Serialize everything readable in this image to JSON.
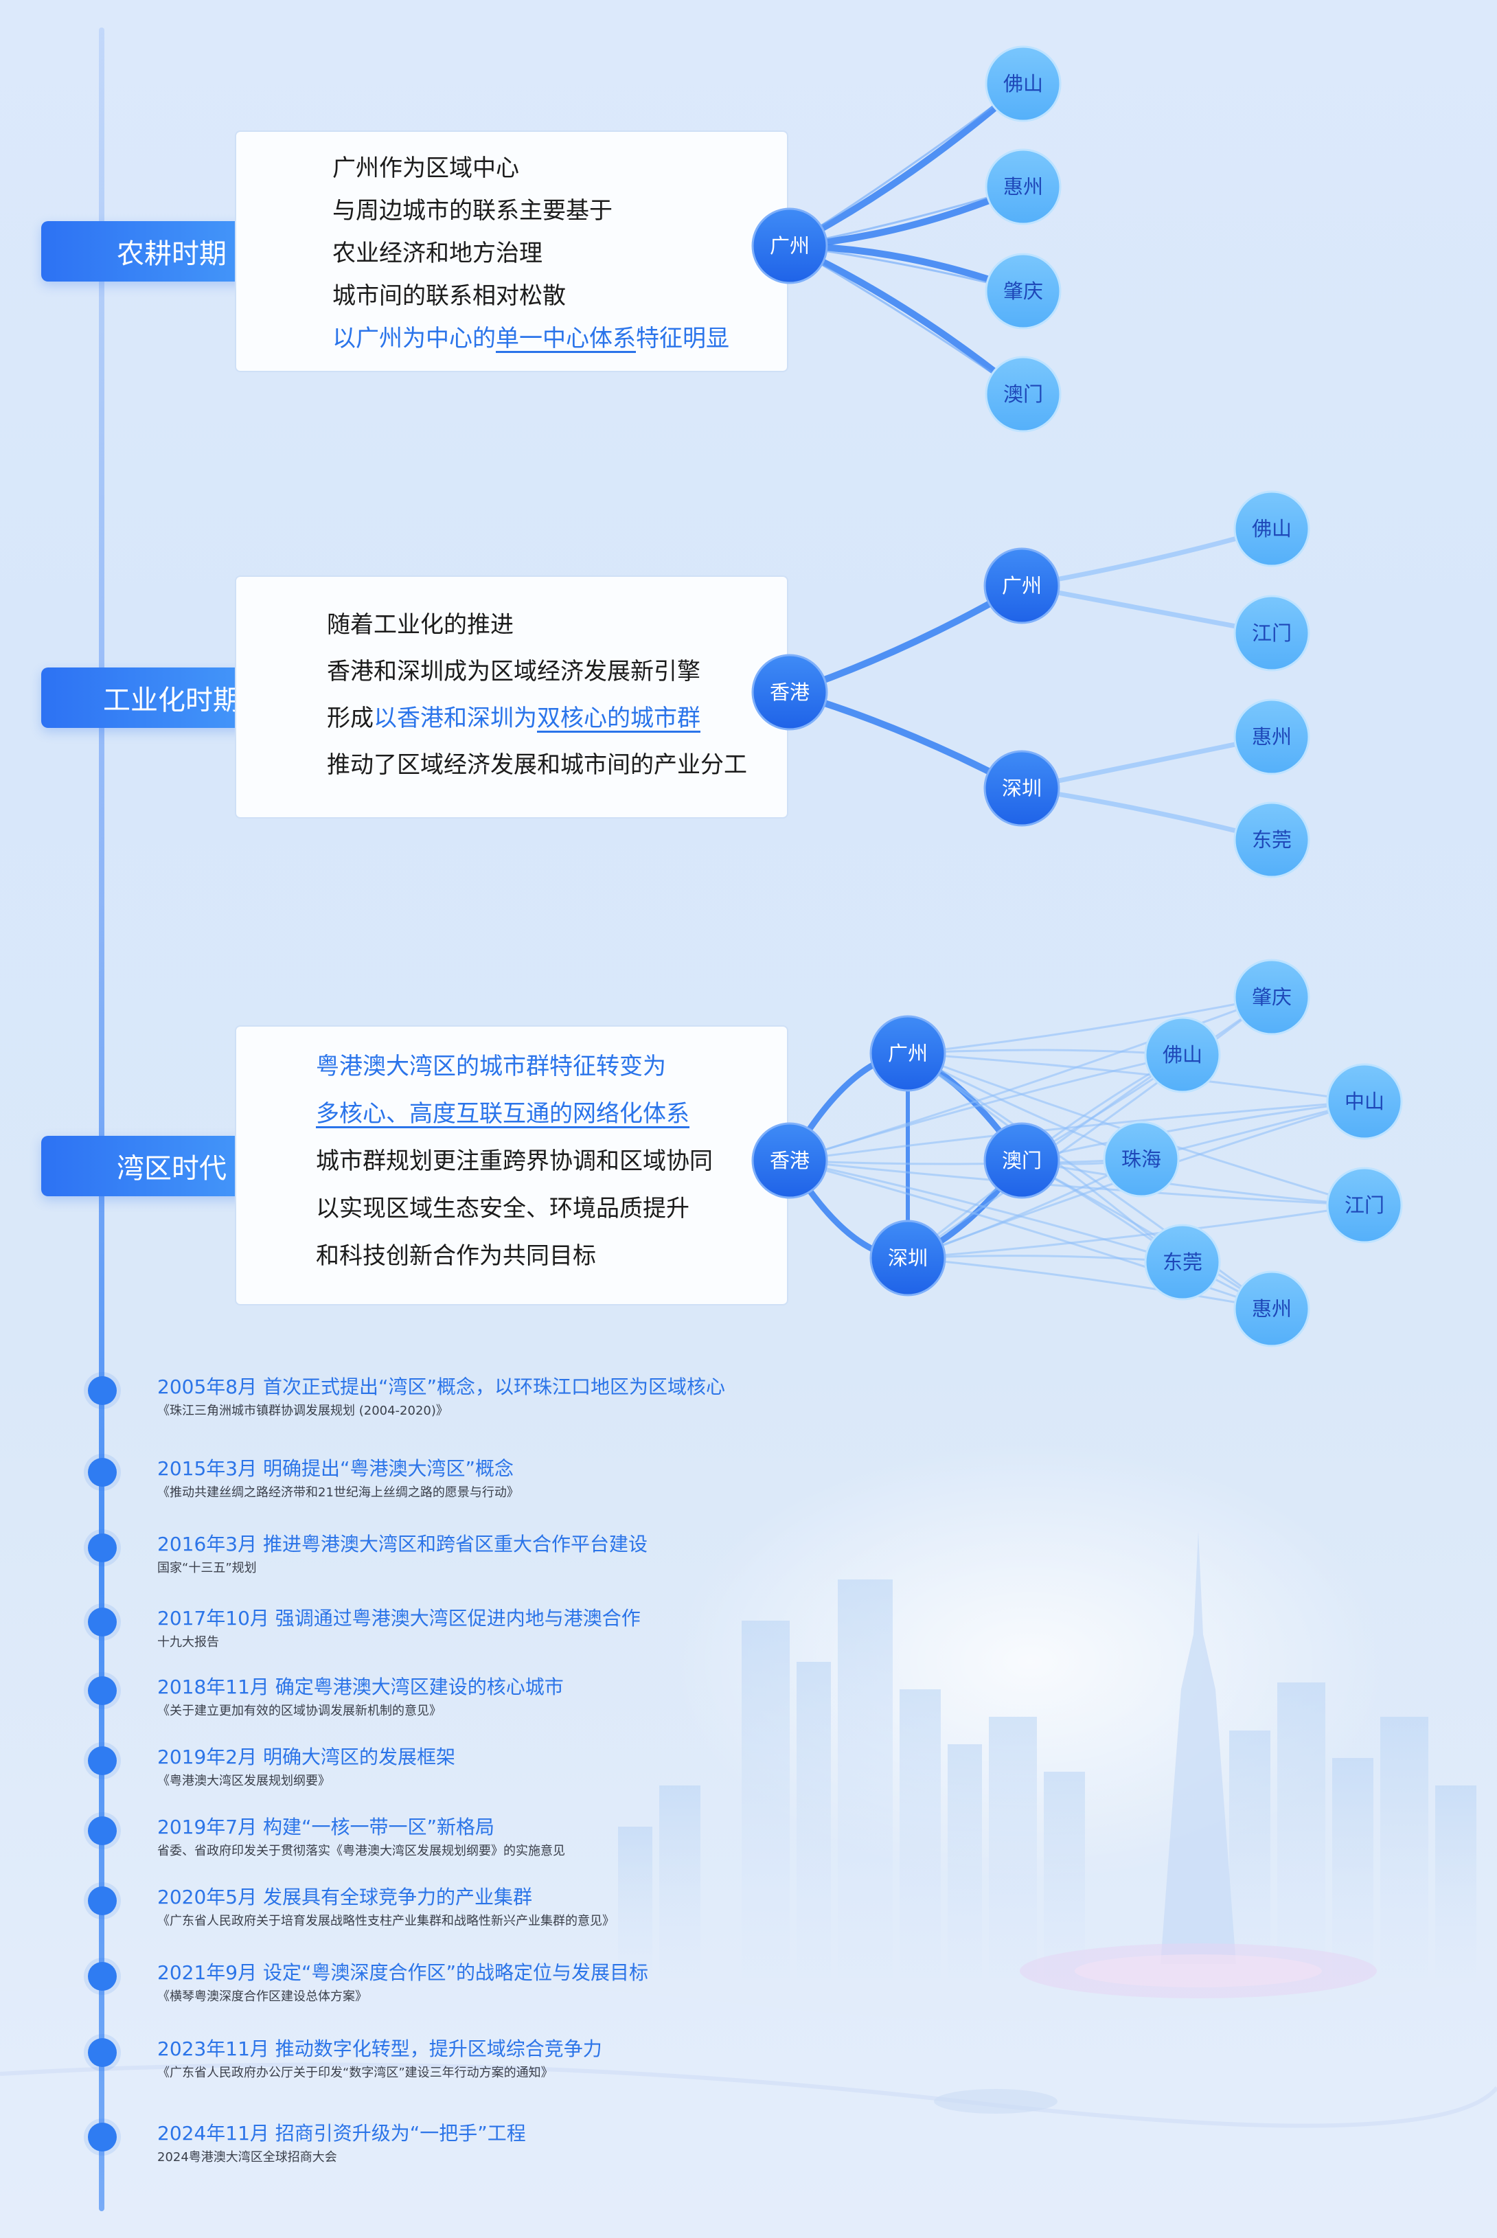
{
  "eras": [
    {
      "label": "农耕时期",
      "lines": [
        {
          "parts": [
            {
              "t": "广州作为区域中心"
            }
          ]
        },
        {
          "parts": [
            {
              "t": "与周边城市的联系主要基于"
            }
          ]
        },
        {
          "parts": [
            {
              "t": "农业经济和地方治理"
            }
          ]
        },
        {
          "parts": [
            {
              "t": "城市间的联系相对松散"
            }
          ]
        },
        {
          "parts": [
            {
              "t": "以广州为中心的",
              "hl": true
            },
            {
              "t": "单一中心体系",
              "hl": true,
              "ul": true
            },
            {
              "t": "特征明显",
              "hl": true
            }
          ]
        }
      ]
    },
    {
      "label": "工业化时期",
      "lines": [
        {
          "parts": [
            {
              "t": "随着工业化的推进"
            }
          ]
        },
        {
          "parts": [
            {
              "t": "香港和深圳成为区域经济发展新引擎"
            }
          ]
        },
        {
          "parts": [
            {
              "t": "形成"
            },
            {
              "t": "以香港和深圳为",
              "hl": true
            },
            {
              "t": "双核心的城市群",
              "hl": true,
              "ul": true
            }
          ]
        },
        {
          "parts": [
            {
              "t": "推动了区域经济发展和城市间的产业分工"
            }
          ]
        }
      ]
    },
    {
      "label": "湾区时代",
      "lines": [
        {
          "parts": [
            {
              "t": "粤港澳大湾区的城市群特征转变为",
              "hl": true
            }
          ]
        },
        {
          "parts": [
            {
              "t": "多核心、高度互联互通的网络化体系",
              "hl": true,
              "ul": true
            }
          ]
        },
        {
          "parts": [
            {
              "t": "城市群规划更注重跨界协调和区域协同"
            }
          ]
        },
        {
          "parts": [
            {
              "t": "以实现区域生态安全、环境品质提升"
            }
          ]
        },
        {
          "parts": [
            {
              "t": "和科技创新合作为共同目标"
            }
          ]
        }
      ]
    }
  ],
  "diagrams": {
    "agrarian": {
      "hub": "广州",
      "leaves": [
        "佛山",
        "惠州",
        "肇庆",
        "澳门"
      ]
    },
    "industrial": {
      "root": "香港",
      "cores": [
        "广州",
        "深圳"
      ],
      "leaves": [
        "佛山",
        "江门",
        "惠州",
        "东莞"
      ]
    },
    "bay": {
      "nodes": [
        "广州",
        "香港",
        "深圳",
        "澳门",
        "佛山",
        "珠海",
        "东莞",
        "肇庆",
        "中山",
        "江门",
        "惠州"
      ]
    }
  },
  "timeline": [
    {
      "title": "2005年8月 首次正式提出“湾区”概念，以环珠江口地区为区域核心",
      "source": "《珠江三角洲城市镇群协调发展规划 (2004-2020)》"
    },
    {
      "title": "2015年3月 明确提出“粤港澳大湾区”概念",
      "source": "《推动共建丝绸之路经济带和21世纪海上丝绸之路的愿景与行动》"
    },
    {
      "title": "2016年3月 推进粤港澳大湾区和跨省区重大合作平台建设",
      "source": "国家“十三五”规划"
    },
    {
      "title": "2017年10月 强调通过粤港澳大湾区促进内地与港澳合作",
      "source": "十九大报告"
    },
    {
      "title": "2018年11月 确定粤港澳大湾区建设的核心城市",
      "source": "《关于建立更加有效的区域协调发展新机制的意见》"
    },
    {
      "title": "2019年2月 明确大湾区的发展框架",
      "source": "《粤港澳大湾区发展规划纲要》"
    },
    {
      "title": "2019年7月 构建“一核一带一区”新格局",
      "source": "省委、省政府印发关于贯彻落实《粤港澳大湾区发展规划纲要》的实施意见"
    },
    {
      "title": "2020年5月 发展具有全球竞争力的产业集群",
      "source": "《广东省人民政府关于培育发展战略性支柱产业集群和战略性新兴产业集群的意见》"
    },
    {
      "title": "2021年9月 设定“粤澳深度合作区”的战略定位与发展目标",
      "source": "《横琴粤澳深度合作区建设总体方案》"
    },
    {
      "title": "2023年11月 推动数字化转型，提升区域综合竞争力",
      "source": "《广东省人民政府办公厅关于印发“数字湾区”建设三年行动方案的通知》"
    },
    {
      "title": "2024年11月 招商引资升级为“一把手”工程",
      "source": "2024粤港澳大湾区全球招商大会"
    }
  ]
}
